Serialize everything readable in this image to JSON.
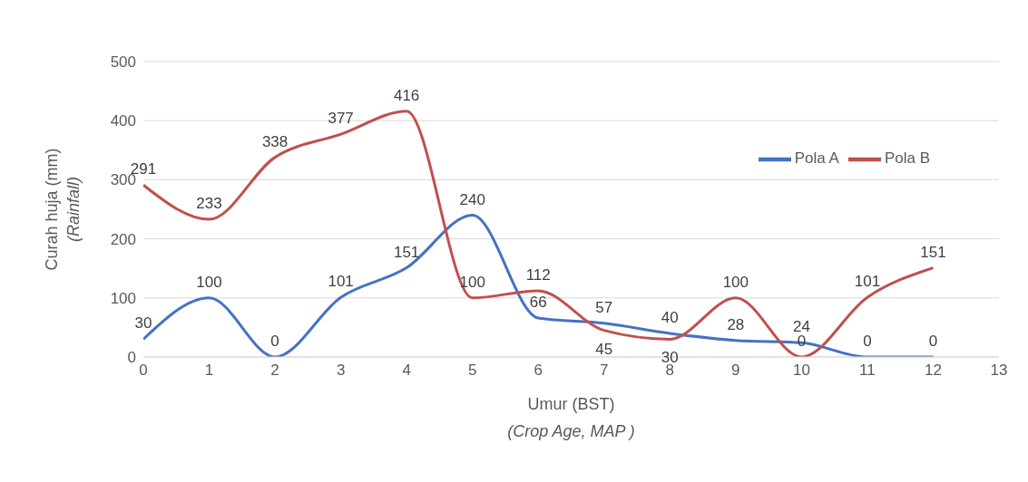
{
  "chart_data": {
    "type": "line",
    "xlabel": "Umur (BST)\n(Crop Age, MAP )",
    "ylabel": "Curah huja (mm)\n(Rainfall)",
    "x": [
      0,
      1,
      2,
      3,
      4,
      5,
      6,
      7,
      8,
      9,
      10,
      11,
      12
    ],
    "series": [
      {
        "name": "Pola A",
        "color": "#4472c4",
        "values": [
          30,
          100,
          0,
          101,
          151,
          240,
          66,
          57,
          40,
          28,
          24,
          0,
          0
        ]
      },
      {
        "name": "Pola B",
        "color": "#c0504d",
        "values": [
          291,
          233,
          338,
          377,
          416,
          100,
          112,
          45,
          30,
          100,
          0,
          101,
          151
        ]
      }
    ],
    "xlim": [
      0,
      13
    ],
    "xticks": [
      0,
      1,
      2,
      3,
      4,
      5,
      6,
      7,
      8,
      9,
      10,
      11,
      12,
      13
    ],
    "ylim": [
      0,
      500
    ],
    "yticks": [
      0,
      100,
      200,
      300,
      400,
      500
    ],
    "grid": "y",
    "legend": "top right",
    "marker": "none",
    "line_style": "solid",
    "data_labels": true
  }
}
